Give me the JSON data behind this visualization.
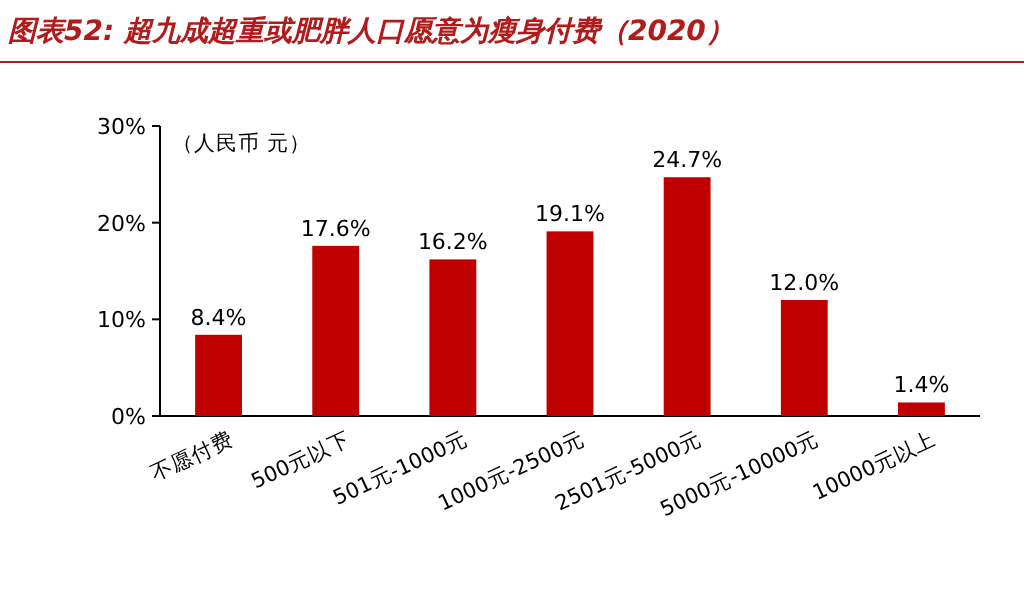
{
  "chart_data": {
    "type": "bar",
    "title": "图表52: 超九成超重或肥胖人口愿意为瘦身付费（2020）",
    "annotations": [
      "（人民币 元）"
    ],
    "categories": [
      "不愿付费",
      "500元以下",
      "501元-1000元",
      "1000元-2500元",
      "2501元-5000元",
      "5000元-10000元",
      "10000元以上"
    ],
    "values": [
      8.4,
      17.6,
      16.2,
      19.1,
      24.7,
      12.0,
      1.4
    ],
    "value_labels": [
      "8.4%",
      "17.6%",
      "16.2%",
      "19.1%",
      "24.7%",
      "12.0%",
      "1.4%"
    ],
    "color": "#c00000",
    "ylim": [
      0,
      30
    ],
    "yticks": [
      {
        "value": 0,
        "label": "0%"
      },
      {
        "value": 10,
        "label": "10%"
      },
      {
        "value": 20,
        "label": "20%"
      },
      {
        "value": 30,
        "label": "30%"
      }
    ],
    "grid": false
  }
}
